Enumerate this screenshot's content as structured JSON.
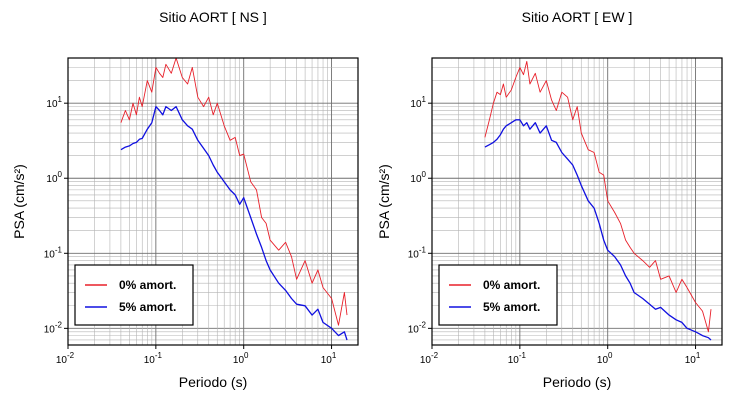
{
  "chart_data": [
    {
      "type": "line",
      "title": "Sitio AORT [ NS ]",
      "xlabel": "Periodo (s)",
      "ylabel": "PSA (cm/s²)",
      "xscale": "log",
      "yscale": "log",
      "xlim": [
        0.01,
        20
      ],
      "ylim": [
        0.006,
        40
      ],
      "grid": true,
      "legend_position": "bottom-left",
      "x_ticks": [
        {
          "base": "10",
          "exp": "-2"
        },
        {
          "base": "10",
          "exp": "-1"
        },
        {
          "base": "10",
          "exp": "0"
        },
        {
          "base": "10",
          "exp": "1"
        }
      ],
      "y_ticks": [
        {
          "base": "10",
          "exp": "-2"
        },
        {
          "base": "10",
          "exp": "-1"
        },
        {
          "base": "10",
          "exp": "0"
        },
        {
          "base": "10",
          "exp": "1"
        }
      ],
      "series": [
        {
          "name": "0% amort.",
          "color": "#e8202a",
          "x": [
            0.04,
            0.045,
            0.05,
            0.055,
            0.06,
            0.065,
            0.07,
            0.08,
            0.09,
            0.1,
            0.11,
            0.12,
            0.13,
            0.15,
            0.17,
            0.2,
            0.23,
            0.26,
            0.3,
            0.35,
            0.4,
            0.45,
            0.5,
            0.6,
            0.7,
            0.8,
            0.9,
            1.0,
            1.2,
            1.4,
            1.6,
            1.8,
            2.0,
            2.5,
            3.0,
            3.5,
            4.0,
            5.0,
            6.0,
            7.0,
            8.0,
            10.0,
            12.0,
            14.0,
            15.0
          ],
          "y": [
            5.5,
            8,
            6,
            10,
            7,
            12,
            9,
            20,
            14,
            30,
            25,
            22,
            33,
            25,
            40,
            22,
            18,
            30,
            12,
            9,
            12,
            7,
            10,
            5,
            3.2,
            3.5,
            2,
            2.1,
            0.9,
            0.7,
            0.3,
            0.25,
            0.15,
            0.11,
            0.14,
            0.09,
            0.045,
            0.08,
            0.04,
            0.06,
            0.035,
            0.025,
            0.011,
            0.03,
            0.015
          ]
        },
        {
          "name": "5% amort.",
          "color": "#1010e0",
          "x": [
            0.04,
            0.045,
            0.05,
            0.055,
            0.06,
            0.065,
            0.07,
            0.08,
            0.09,
            0.1,
            0.11,
            0.12,
            0.13,
            0.15,
            0.17,
            0.2,
            0.23,
            0.26,
            0.3,
            0.35,
            0.4,
            0.45,
            0.5,
            0.6,
            0.7,
            0.8,
            0.9,
            1.0,
            1.2,
            1.4,
            1.6,
            1.8,
            2.0,
            2.5,
            3.0,
            3.5,
            4.0,
            5.0,
            6.0,
            7.0,
            8.0,
            10.0,
            12.0,
            14.0,
            15.0
          ],
          "y": [
            2.4,
            2.6,
            2.7,
            2.9,
            3.0,
            3.3,
            3.4,
            4.5,
            5.5,
            9,
            8,
            7,
            9,
            8,
            9,
            6,
            5,
            4.5,
            3.2,
            2.5,
            2.0,
            1.5,
            1.2,
            0.9,
            0.7,
            0.6,
            0.45,
            0.55,
            0.3,
            0.18,
            0.12,
            0.08,
            0.06,
            0.04,
            0.032,
            0.025,
            0.021,
            0.02,
            0.015,
            0.018,
            0.012,
            0.01,
            0.008,
            0.009,
            0.007
          ]
        }
      ]
    },
    {
      "type": "line",
      "title": "Sitio AORT [ EW ]",
      "xlabel": "Periodo (s)",
      "ylabel": "PSA (cm/s²)",
      "xscale": "log",
      "yscale": "log",
      "xlim": [
        0.01,
        20
      ],
      "ylim": [
        0.006,
        40
      ],
      "grid": true,
      "legend_position": "bottom-left",
      "x_ticks": [
        {
          "base": "10",
          "exp": "-2"
        },
        {
          "base": "10",
          "exp": "-1"
        },
        {
          "base": "10",
          "exp": "0"
        },
        {
          "base": "10",
          "exp": "1"
        }
      ],
      "y_ticks": [
        {
          "base": "10",
          "exp": "-2"
        },
        {
          "base": "10",
          "exp": "-1"
        },
        {
          "base": "10",
          "exp": "0"
        },
        {
          "base": "10",
          "exp": "1"
        }
      ],
      "series": [
        {
          "name": "0% amort.",
          "color": "#e8202a",
          "x": [
            0.04,
            0.045,
            0.05,
            0.055,
            0.06,
            0.065,
            0.07,
            0.08,
            0.09,
            0.1,
            0.11,
            0.12,
            0.13,
            0.15,
            0.17,
            0.2,
            0.23,
            0.26,
            0.3,
            0.35,
            0.4,
            0.45,
            0.5,
            0.6,
            0.7,
            0.8,
            0.9,
            1.0,
            1.2,
            1.4,
            1.6,
            1.8,
            2.0,
            2.5,
            3.0,
            3.5,
            4.0,
            5.0,
            6.0,
            7.0,
            8.0,
            10.0,
            12.0,
            14.0,
            15.0
          ],
          "y": [
            3.5,
            6,
            10,
            14,
            13,
            18,
            12,
            15,
            22,
            30,
            24,
            36,
            18,
            25,
            14,
            20,
            11,
            8,
            14,
            12,
            6,
            9,
            4,
            2.4,
            2.2,
            1.2,
            1.1,
            0.5,
            0.35,
            0.25,
            0.15,
            0.12,
            0.1,
            0.08,
            0.065,
            0.08,
            0.045,
            0.05,
            0.03,
            0.045,
            0.035,
            0.022,
            0.017,
            0.009,
            0.018
          ]
        },
        {
          "name": "5% amort.",
          "color": "#1010e0",
          "x": [
            0.04,
            0.045,
            0.05,
            0.055,
            0.06,
            0.065,
            0.07,
            0.08,
            0.09,
            0.1,
            0.11,
            0.12,
            0.13,
            0.15,
            0.17,
            0.2,
            0.23,
            0.26,
            0.3,
            0.35,
            0.4,
            0.45,
            0.5,
            0.6,
            0.7,
            0.8,
            0.9,
            1.0,
            1.2,
            1.4,
            1.6,
            1.8,
            2.0,
            2.5,
            3.0,
            3.5,
            4.0,
            5.0,
            6.0,
            7.0,
            8.0,
            10.0,
            12.0,
            14.0,
            15.0
          ],
          "y": [
            2.6,
            2.8,
            3.0,
            3.3,
            3.8,
            4.5,
            5.0,
            5.5,
            6,
            6,
            5,
            5.5,
            4.5,
            5.5,
            4,
            5,
            3.2,
            3.0,
            2.2,
            1.8,
            1.5,
            1.1,
            0.8,
            0.5,
            0.4,
            0.25,
            0.15,
            0.11,
            0.09,
            0.07,
            0.05,
            0.04,
            0.03,
            0.025,
            0.021,
            0.018,
            0.019,
            0.015,
            0.013,
            0.012,
            0.01,
            0.009,
            0.008,
            0.0075,
            0.007
          ]
        }
      ]
    }
  ]
}
